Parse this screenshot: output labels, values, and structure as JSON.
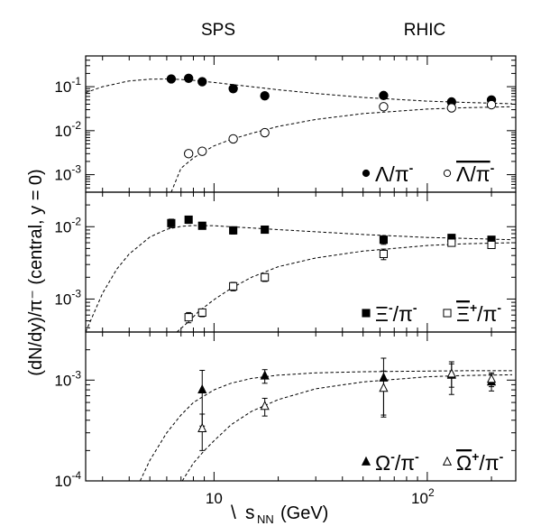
{
  "chart_data": {
    "type": "scatter",
    "top_labels": [
      "SPS",
      "RHIC"
    ],
    "ylabel": "(dN/dy)/π⁻ (central, y = 0)",
    "xlabel_sqrt": "\\",
    "xlabel_var": "s",
    "xlabel_sub": "NN",
    "xlabel_unit": "(GeV)",
    "x_scale": "log",
    "x_tick_labels": [
      {
        "base": "10",
        "exp": "",
        "value": 10
      },
      {
        "base": "10",
        "exp": "2",
        "value": 100
      }
    ],
    "panels": [
      {
        "y_scale": "log",
        "ylim": [
          0.0004,
          0.5
        ],
        "y_tick_labels": [
          {
            "base": "10",
            "exp": "-1",
            "value": 0.1
          },
          {
            "base": "10",
            "exp": "-2",
            "value": 0.01
          },
          {
            "base": "10",
            "exp": "-3",
            "value": 0.001
          }
        ],
        "legend": [
          {
            "marker": "filled-circle",
            "text": "Λ/π",
            "sup": "-",
            "bar": false
          },
          {
            "marker": "open-circle",
            "text": "Λ/π",
            "sup": "-",
            "bar": true
          }
        ],
        "series": [
          {
            "marker": "filled-circle",
            "x": [
              6.3,
              7.6,
              8.8,
              12.3,
              17.3,
              62.4,
              130,
              200
            ],
            "y": [
              0.15,
              0.155,
              0.13,
              0.09,
              0.062,
              0.063,
              0.045,
              0.05
            ],
            "yerr": [
              0,
              0,
              0,
              0,
              0,
              0,
              0,
              0
            ]
          },
          {
            "marker": "open-circle",
            "x": [
              7.6,
              8.8,
              12.3,
              17.3,
              62.4,
              130,
              200
            ],
            "y": [
              0.003,
              0.0034,
              0.0065,
              0.009,
              0.035,
              0.033,
              0.039
            ],
            "yerr": [
              0,
              0,
              0,
              0,
              0,
              0,
              0
            ]
          }
        ],
        "curves": [
          {
            "x": [
              2.5,
              3,
              4,
              5,
              6,
              7,
              8,
              10,
              15,
              20,
              30,
              50,
              100,
              150,
              250
            ],
            "y": [
              0.073,
              0.1,
              0.135,
              0.148,
              0.15,
              0.146,
              0.14,
              0.125,
              0.1,
              0.085,
              0.07,
              0.057,
              0.047,
              0.044,
              0.041
            ]
          },
          {
            "x": [
              6.3,
              7,
              8,
              9,
              10,
              12,
              15,
              20,
              30,
              50,
              100,
              150,
              250
            ],
            "y": [
              0.0004,
              0.0014,
              0.0024,
              0.0034,
              0.0045,
              0.0063,
              0.0087,
              0.0125,
              0.018,
              0.0245,
              0.031,
              0.0333,
              0.035
            ]
          }
        ]
      },
      {
        "y_scale": "log",
        "ylim": [
          0.00035,
          0.03
        ],
        "y_tick_labels": [
          {
            "base": "10",
            "exp": "-2",
            "value": 0.01
          },
          {
            "base": "10",
            "exp": "-3",
            "value": 0.001
          }
        ],
        "legend": [
          {
            "marker": "filled-square",
            "text": "Ξ",
            "sup": "-",
            "tail": "/π",
            "tail_sup": "-",
            "bar": false
          },
          {
            "marker": "open-square",
            "text": "Ξ",
            "sup": "+",
            "tail": "/π",
            "tail_sup": "-",
            "bar": true
          }
        ],
        "series": [
          {
            "marker": "filled-square",
            "x": [
              6.3,
              7.6,
              8.8,
              12.3,
              17.3,
              62.4,
              130,
              200
            ],
            "y": [
              0.0112,
              0.0125,
              0.0103,
              0.0089,
              0.0091,
              0.0066,
              0.007,
              0.0066
            ],
            "yerr": [
              0.0015,
              0.0014,
              0.0008,
              0.001,
              0.0006,
              0.0009,
              0.0008,
              0.0006
            ]
          },
          {
            "marker": "open-square",
            "x": [
              7.6,
              8.8,
              12.3,
              17.3,
              62.4,
              130,
              200
            ],
            "y": [
              0.00056,
              0.00065,
              0.0015,
              0.002,
              0.0042,
              0.006,
              0.0056
            ],
            "yerr": [
              9e-05,
              8e-05,
              0.0002,
              0.00025,
              0.0007,
              0.0006,
              0.0006
            ]
          }
        ],
        "curves": [
          {
            "x": [
              2.5,
              3,
              3.5,
              4,
              5,
              6,
              7,
              8,
              10,
              12,
              15,
              20,
              30,
              50,
              100,
              150,
              250
            ],
            "y": [
              0.00035,
              0.0012,
              0.0026,
              0.0042,
              0.0072,
              0.0092,
              0.0101,
              0.0104,
              0.0103,
              0.01,
              0.0096,
              0.0091,
              0.0085,
              0.0078,
              0.0071,
              0.0069,
              0.0066
            ]
          },
          {
            "x": [
              6.7,
              7.5,
              8.5,
              10,
              12,
              15,
              20,
              30,
              50,
              100,
              150,
              250
            ],
            "y": [
              0.00035,
              0.00047,
              0.00068,
              0.00098,
              0.0014,
              0.002,
              0.0028,
              0.0037,
              0.0046,
              0.0055,
              0.0058,
              0.006
            ]
          }
        ]
      },
      {
        "y_scale": "log",
        "ylim": [
          0.0001,
          0.003
        ],
        "y_tick_labels": [
          {
            "base": "10",
            "exp": "-3",
            "value": 0.001
          },
          {
            "base": "10",
            "exp": "-4",
            "value": 0.0001
          }
        ],
        "legend": [
          {
            "marker": "filled-triangle",
            "text": "Ω",
            "sup": "-",
            "tail": "/π",
            "tail_sup": "-",
            "bar": false
          },
          {
            "marker": "open-triangle",
            "text": "Ω",
            "sup": "+",
            "tail": "/π",
            "tail_sup": "-",
            "bar": true
          }
        ],
        "series": [
          {
            "marker": "filled-triangle",
            "x": [
              8.8,
              17.3,
              62.4,
              130,
              200
            ],
            "y": [
              0.0008,
              0.0011,
              0.00105,
              0.00112,
              0.00096
            ],
            "yerr": [
              0.00045,
              0.00017,
              0.0006,
              0.0004,
              0.00018
            ]
          },
          {
            "marker": "open-triangle",
            "x": [
              8.8,
              17.3,
              62.4,
              130,
              200
            ],
            "y": [
              0.00033,
              0.00055,
              0.00083,
              0.00115,
              0.00102
            ],
            "yerr": [
              0.00013,
              0.00011,
              0.0004,
              0.0003,
              0.00016
            ]
          }
        ],
        "curves": [
          {
            "x": [
              4.5,
              5,
              6,
              7,
              8,
              10,
              12,
              15,
              20,
              30,
              50,
              100,
              150,
              250
            ],
            "y": [
              0.0001,
              0.00016,
              0.0003,
              0.00045,
              0.0006,
              0.0008,
              0.00093,
              0.00104,
              0.00112,
              0.00118,
              0.00121,
              0.00123,
              0.00124,
              0.00124
            ]
          },
          {
            "x": [
              7.1,
              8,
              9,
              10,
              12,
              15,
              20,
              30,
              50,
              100,
              150,
              250
            ],
            "y": [
              0.0001,
              0.00015,
              0.0002,
              0.00025,
              0.00036,
              0.00049,
              0.00064,
              0.00082,
              0.00096,
              0.00108,
              0.00111,
              0.00113
            ]
          }
        ]
      }
    ]
  }
}
